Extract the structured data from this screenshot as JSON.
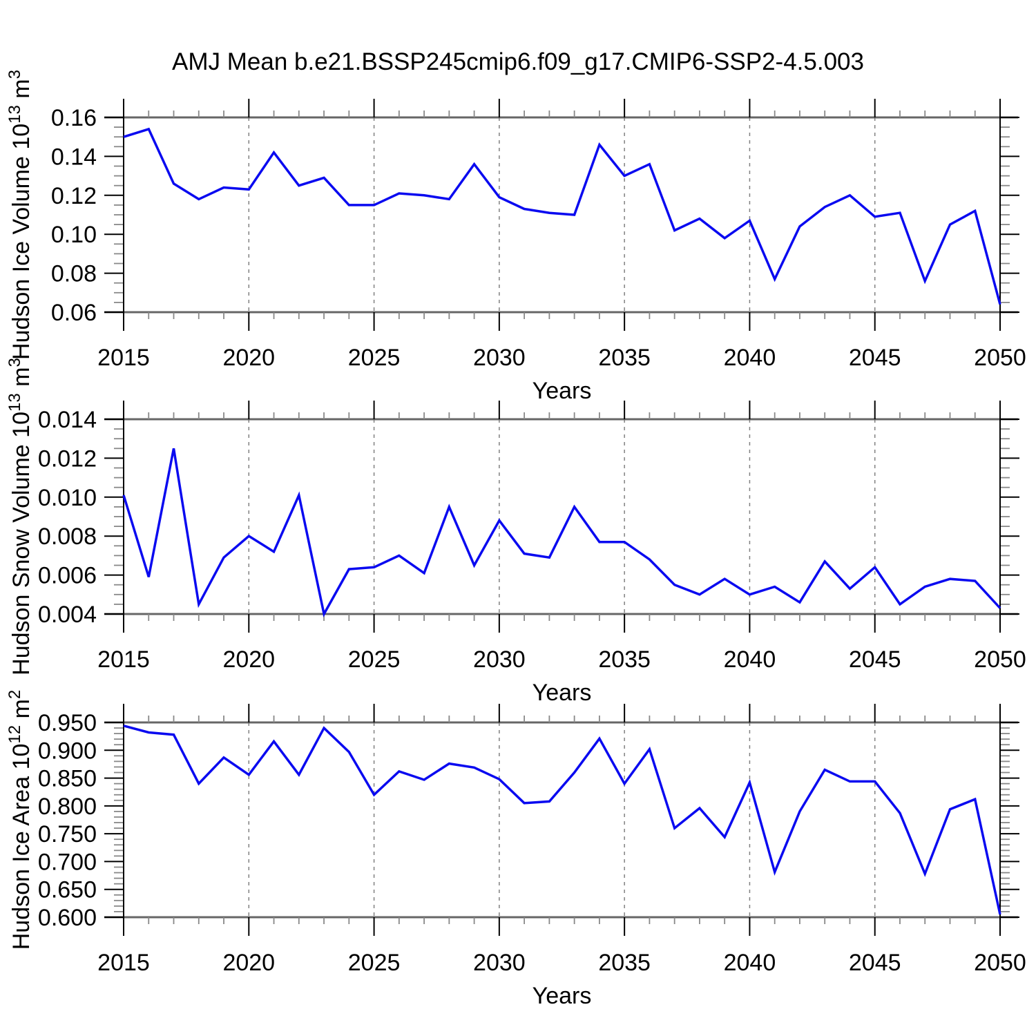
{
  "title": "AMJ Mean b.e21.BSSP245cmip6.f09_g17.CMIP6-SSP2-4.5.003",
  "colors": {
    "line": "#0a0af0",
    "frame": "#666666",
    "spine": "#000000",
    "major_tick": "#000000",
    "minor_tick": "#888888",
    "grid": "#808080",
    "text": "#000000",
    "background": "#ffffff"
  },
  "chart_data": [
    {
      "type": "line",
      "ylabel_text": "Hudson Ice Volume 10^13 m^3",
      "ylabel_parts": [
        {
          "t": "Hudson Ice Volume 10"
        },
        {
          "t": "13",
          "sup": true
        },
        {
          "t": " m"
        },
        {
          "t": "3",
          "sup": true
        }
      ],
      "xlabel": "Years",
      "x": [
        2015,
        2016,
        2017,
        2018,
        2019,
        2020,
        2021,
        2022,
        2023,
        2024,
        2025,
        2026,
        2027,
        2028,
        2029,
        2030,
        2031,
        2032,
        2033,
        2034,
        2035,
        2036,
        2037,
        2038,
        2039,
        2040,
        2041,
        2042,
        2043,
        2044,
        2045,
        2046,
        2047,
        2048,
        2049,
        2050
      ],
      "values": [
        0.15,
        0.154,
        0.126,
        0.118,
        0.124,
        0.123,
        0.142,
        0.125,
        0.129,
        0.115,
        0.115,
        0.121,
        0.12,
        0.118,
        0.136,
        0.119,
        0.113,
        0.111,
        0.11,
        0.146,
        0.13,
        0.136,
        0.102,
        0.108,
        0.098,
        0.107,
        0.077,
        0.104,
        0.114,
        0.12,
        0.109,
        0.111,
        0.076,
        0.105,
        0.112,
        0.064
      ],
      "ylim": [
        0.06,
        0.16
      ],
      "yticks": [
        0.06,
        0.08,
        0.1,
        0.12,
        0.14,
        0.16
      ],
      "ytick_labels": [
        "0.06",
        "0.08",
        "0.10",
        "0.12",
        "0.14",
        "0.16"
      ],
      "yminor_step": 0.005,
      "xlim": [
        2015,
        2050
      ],
      "xticks": [
        2015,
        2020,
        2025,
        2030,
        2035,
        2040,
        2045,
        2050
      ],
      "xtick_labels": [
        "2015",
        "2020",
        "2025",
        "2030",
        "2035",
        "2040",
        "2045",
        "2050"
      ],
      "xminor_step": 1,
      "grid": "vertical-dashed-at-interior-x-majors",
      "legend": "none"
    },
    {
      "type": "line",
      "ylabel_text": "Hudson Snow Volume 10^13 m^3",
      "ylabel_parts": [
        {
          "t": "Hudson Snow Volume 10"
        },
        {
          "t": "13",
          "sup": true
        },
        {
          "t": " m"
        },
        {
          "t": "3",
          "sup": true
        }
      ],
      "xlabel": "Years",
      "x": [
        2015,
        2016,
        2017,
        2018,
        2019,
        2020,
        2021,
        2022,
        2023,
        2024,
        2025,
        2026,
        2027,
        2028,
        2029,
        2030,
        2031,
        2032,
        2033,
        2034,
        2035,
        2036,
        2037,
        2038,
        2039,
        2040,
        2041,
        2042,
        2043,
        2044,
        2045,
        2046,
        2047,
        2048,
        2049,
        2050
      ],
      "values": [
        0.0101,
        0.0059,
        0.0125,
        0.0045,
        0.0069,
        0.008,
        0.0072,
        0.0101,
        0.004,
        0.0063,
        0.0064,
        0.007,
        0.0061,
        0.0095,
        0.0065,
        0.0088,
        0.0071,
        0.0069,
        0.0095,
        0.0077,
        0.0077,
        0.0068,
        0.0055,
        0.005,
        0.0058,
        0.005,
        0.0054,
        0.0046,
        0.0067,
        0.0053,
        0.0064,
        0.0045,
        0.0054,
        0.0058,
        0.0057,
        0.0043
      ],
      "ylim": [
        0.004,
        0.014
      ],
      "yticks": [
        0.004,
        0.006,
        0.008,
        0.01,
        0.012,
        0.014
      ],
      "ytick_labels": [
        "0.004",
        "0.006",
        "0.008",
        "0.010",
        "0.012",
        "0.014"
      ],
      "yminor_step": 0.0005,
      "xlim": [
        2015,
        2050
      ],
      "xticks": [
        2015,
        2020,
        2025,
        2030,
        2035,
        2040,
        2045,
        2050
      ],
      "xtick_labels": [
        "2015",
        "2020",
        "2025",
        "2030",
        "2035",
        "2040",
        "2045",
        "2050"
      ],
      "xminor_step": 1,
      "grid": "vertical-dashed-at-interior-x-majors",
      "legend": "none"
    },
    {
      "type": "line",
      "ylabel_text": "Hudson Ice Area 10^12 m^2",
      "ylabel_parts": [
        {
          "t": "Hudson Ice Area 10"
        },
        {
          "t": "12",
          "sup": true
        },
        {
          "t": " m"
        },
        {
          "t": "2",
          "sup": true
        }
      ],
      "xlabel": "Years",
      "x": [
        2015,
        2016,
        2017,
        2018,
        2019,
        2020,
        2021,
        2022,
        2023,
        2024,
        2025,
        2026,
        2027,
        2028,
        2029,
        2030,
        2031,
        2032,
        2033,
        2034,
        2035,
        2036,
        2037,
        2038,
        2039,
        2040,
        2041,
        2042,
        2043,
        2044,
        2045,
        2046,
        2047,
        2048,
        2049,
        2050
      ],
      "values": [
        0.944,
        0.932,
        0.928,
        0.84,
        0.887,
        0.856,
        0.916,
        0.856,
        0.94,
        0.897,
        0.82,
        0.862,
        0.847,
        0.876,
        0.869,
        0.848,
        0.805,
        0.808,
        0.86,
        0.921,
        0.84,
        0.902,
        0.76,
        0.796,
        0.744,
        0.842,
        0.681,
        0.79,
        0.865,
        0.844,
        0.844,
        0.787,
        0.678,
        0.794,
        0.812,
        0.605
      ],
      "ylim": [
        0.6,
        0.95
      ],
      "yticks": [
        0.6,
        0.65,
        0.7,
        0.75,
        0.8,
        0.85,
        0.9,
        0.95
      ],
      "ytick_labels": [
        "0.600",
        "0.650",
        "0.700",
        "0.750",
        "0.800",
        "0.850",
        "0.900",
        "0.950"
      ],
      "yminor_step": 0.01,
      "xlim": [
        2015,
        2050
      ],
      "xticks": [
        2015,
        2020,
        2025,
        2030,
        2035,
        2040,
        2045,
        2050
      ],
      "xtick_labels": [
        "2015",
        "2020",
        "2025",
        "2030",
        "2035",
        "2040",
        "2045",
        "2050"
      ],
      "xminor_step": 1,
      "grid": "vertical-dashed-at-interior-x-majors",
      "legend": "none"
    }
  ]
}
